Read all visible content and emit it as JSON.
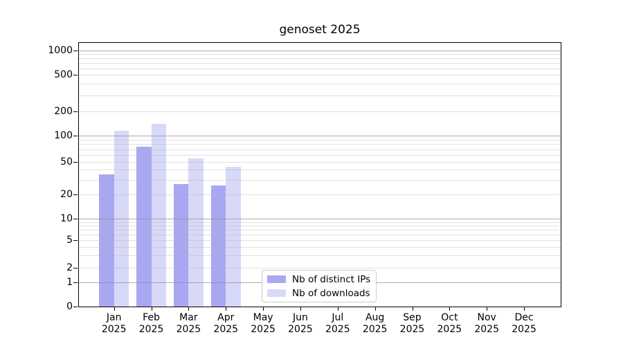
{
  "chart_data": {
    "type": "bar",
    "title": "genoset 2025",
    "months": [
      "Jan",
      "Feb",
      "Mar",
      "Apr",
      "May",
      "Jun",
      "Jul",
      "Aug",
      "Sep",
      "Oct",
      "Nov",
      "Dec"
    ],
    "year_label": "2025",
    "series": [
      {
        "name": "Nb of distinct IPs",
        "color": "#a8a8f2",
        "values": [
          35,
          75,
          27,
          26,
          null,
          null,
          null,
          null,
          null,
          null,
          null,
          null
        ]
      },
      {
        "name": "Nb of downloads",
        "color": "#d8d8f8",
        "values": [
          115,
          140,
          55,
          44,
          null,
          null,
          null,
          null,
          null,
          null,
          null,
          null
        ]
      }
    ],
    "y_ticks": [
      0,
      1,
      2,
      5,
      10,
      20,
      50,
      100,
      200,
      500,
      1000
    ],
    "ylim": [
      0,
      1260
    ],
    "scale": "log-like (0,1,2,5,10,20,50,100,200,500,1000; compressed near zero)",
    "grid": "on",
    "legend_position": "bottom-center-inside"
  }
}
